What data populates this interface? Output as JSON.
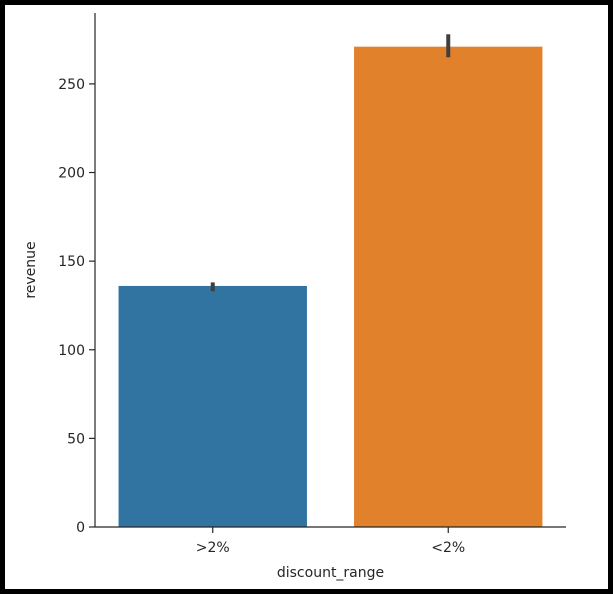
{
  "chart_data": {
    "type": "bar",
    "title": "",
    "xlabel": "discount_range",
    "ylabel": "revenue",
    "categories": [
      ">2%",
      "<2%"
    ],
    "values": [
      136,
      271
    ],
    "error_bars": [
      {
        "low": 133,
        "high": 138
      },
      {
        "low": 265,
        "high": 278
      }
    ],
    "colors": [
      "#3274a1",
      "#e1812c"
    ],
    "errorbar_color": "#3f3f3f",
    "ylim": [
      0,
      290
    ],
    "yticks": [
      0,
      50,
      100,
      150,
      200,
      250
    ],
    "grid": false,
    "legend": "none"
  }
}
